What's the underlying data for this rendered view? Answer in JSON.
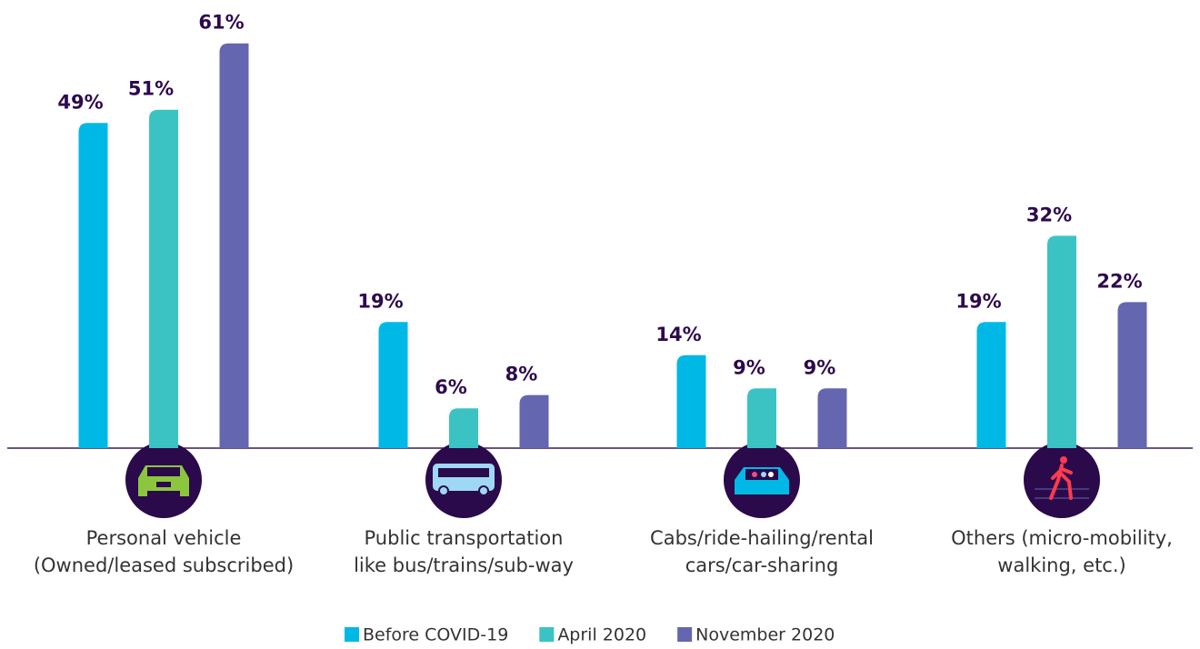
{
  "chart_data": {
    "type": "bar",
    "categories": [
      "Personal vehicle\n(Owned/leased subscribed)",
      "Public transportation\nlike bus/trains/sub-way",
      "Cabs/ride-hailing/rental\ncars/car-sharing",
      "Others (micro-mobility,\nwalking, etc.)"
    ],
    "series": [
      {
        "name": "Before COVID-19",
        "color": "#00b8e6",
        "values": [
          49,
          19,
          14,
          19
        ],
        "value_labels": [
          "49%",
          "19%",
          "14%",
          "19%"
        ]
      },
      {
        "name": "April 2020",
        "color": "#3bc3c4",
        "values": [
          51,
          6,
          9,
          32
        ],
        "value_labels": [
          "51%",
          "6%",
          "9%",
          "32%"
        ]
      },
      {
        "name": "November 2020",
        "color": "#6466b0",
        "values": [
          61,
          8,
          9,
          22
        ],
        "value_labels": [
          "61%",
          "8%",
          "9%",
          "22%"
        ]
      }
    ],
    "legend": "bottom"
  }
}
